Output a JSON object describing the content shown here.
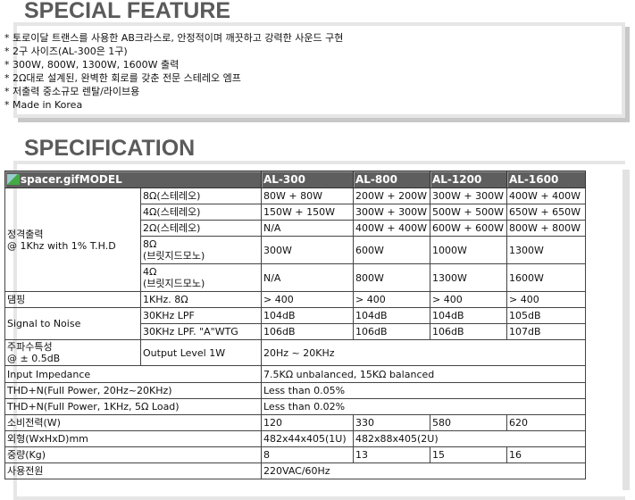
{
  "feature": {
    "title": "SPECIAL FEATURE",
    "items": [
      "* 토로이달 트랜스를 사용한 AB크라스로, 안정적이며 깨끗하고 강력한 사운드 구현",
      "* 2구 사이즈(AL-300은 1구)",
      "* 300W, 800W, 1300W, 1600W 출력",
      "* 2Ω대로 설계된, 완벽한 회로를 갖춘 전문 스테레오 엠프",
      "* 저출력 중소규모 렌탈/라이브용",
      "* Made in Korea"
    ]
  },
  "spec": {
    "title": "SPECIFICATION",
    "header": {
      "model": "spacer.gifMODEL",
      "models": [
        "AL-300",
        "AL-800",
        "AL-1200",
        "AL-1600"
      ]
    },
    "rated_output": {
      "label1": "정격출력",
      "label2": "@ 1Khz with 1% T.H.D",
      "rows": [
        {
          "cond": "8Ω(스테레오)",
          "vals": [
            "80W + 80W",
            "200W + 200W",
            "300W + 300W",
            "400W + 400W"
          ]
        },
        {
          "cond": "4Ω(스테레오)",
          "vals": [
            "150W + 150W",
            "300W + 300W",
            "500W + 500W",
            "650W + 650W"
          ]
        },
        {
          "cond": "2Ω(스테레오)",
          "vals": [
            "N/A",
            "400W + 400W",
            "600W + 600W",
            "800W + 800W"
          ]
        },
        {
          "cond1": "8Ω",
          "cond2": "(브릿지드모노)",
          "vals": [
            "300W",
            "600W",
            "1000W",
            "1300W"
          ]
        },
        {
          "cond1": "4Ω",
          "cond2": "(브릿지드모노)",
          "vals": [
            "N/A",
            "800W",
            "1300W",
            "1600W"
          ]
        }
      ]
    },
    "damping": {
      "label": "댐핑",
      "cond": "1KHz. 8Ω",
      "vals": [
        "> 400",
        "> 400",
        "> 400",
        "> 400"
      ]
    },
    "snr": {
      "label": "Signal to Noise",
      "rows": [
        {
          "cond": "30KHz LPF",
          "vals": [
            "104dB",
            "104dB",
            "104dB",
            "105dB"
          ]
        },
        {
          "cond": "30KHz LPF. \"A\"WTG",
          "vals": [
            "106dB",
            "106dB",
            "106dB",
            "107dB"
          ]
        }
      ]
    },
    "freq": {
      "label1": "주파수특성",
      "label2": "@ ± 0.5dB",
      "cond": "Output Level 1W",
      "value": "20Hz ~ 20KHz"
    },
    "input_impedance": {
      "label": "Input Impedance",
      "value": "7.5KΩ unbalanced, 15KΩ balanced"
    },
    "thd1": {
      "label": "THD+N(Full Power, 20Hz~20KHz)",
      "value": "Less than 0.05%"
    },
    "thd2": {
      "label": "THD+N(Full Power, 1KHz, 5Ω Load)",
      "value": "Less than 0.02%"
    },
    "power_consumption": {
      "label": "소비전력(W)",
      "vals": [
        "120",
        "330",
        "580",
        "620"
      ]
    },
    "dimensions": {
      "label": "외형(WxHxD)mm",
      "val1": "482x44x405(1U)",
      "val2": "482x88x405(2U)"
    },
    "weight": {
      "label": "중량(Kg)",
      "vals": [
        "8",
        "13",
        "15",
        "16"
      ]
    },
    "power_supply": {
      "label": "사용전원",
      "value": "220VAC/60Hz"
    }
  }
}
